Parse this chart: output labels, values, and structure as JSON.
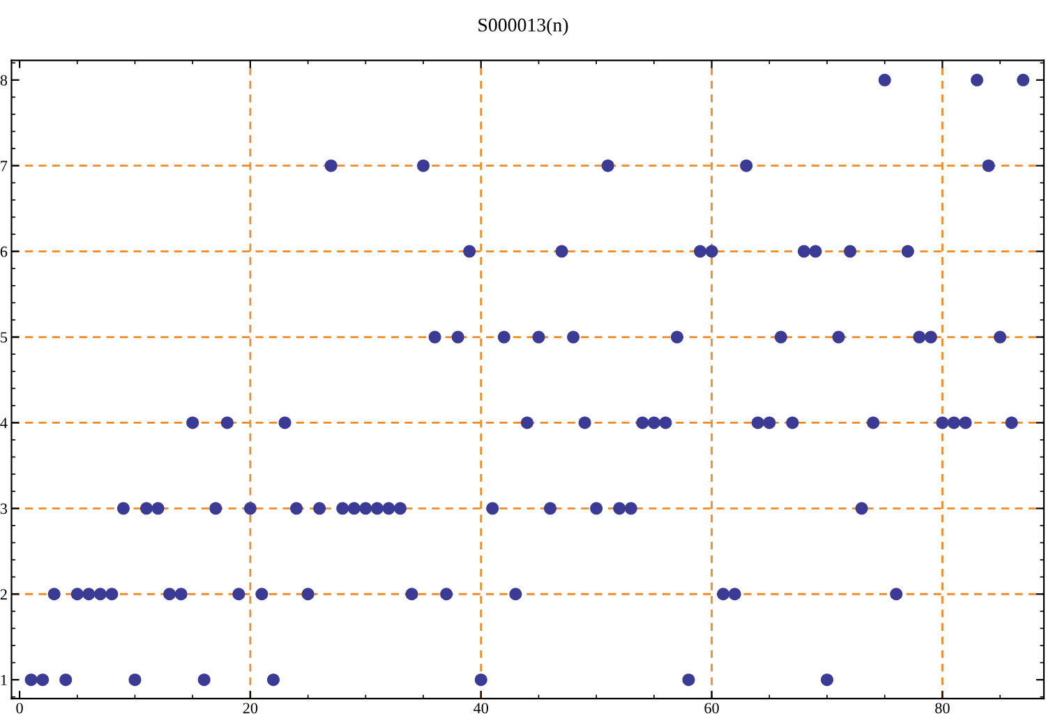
{
  "chart_data": {
    "type": "scatter",
    "title": "S000013(n)",
    "x": [
      1,
      2,
      3,
      4,
      5,
      6,
      7,
      8,
      9,
      10,
      11,
      12,
      13,
      14,
      15,
      16,
      17,
      18,
      19,
      20,
      21,
      22,
      23,
      24,
      25,
      26,
      27,
      28,
      29,
      30,
      31,
      32,
      33,
      34,
      35,
      36,
      37,
      38,
      39,
      40,
      41,
      42,
      43,
      44,
      45,
      46,
      47,
      48,
      49,
      50,
      51,
      52,
      53,
      54,
      55,
      56,
      57,
      58,
      59,
      60,
      61,
      62,
      63,
      64,
      65,
      66,
      67,
      68,
      69,
      70,
      71,
      72,
      73,
      74,
      75,
      76,
      77,
      78,
      79,
      80,
      81,
      82,
      83,
      84,
      85,
      86,
      87
    ],
    "series": [
      {
        "color": "#3b3b96",
        "values": [
          1,
          1,
          2,
          1,
          2,
          2,
          2,
          2,
          3,
          1,
          3,
          3,
          2,
          2,
          4,
          1,
          3,
          4,
          2,
          3,
          2,
          1,
          4,
          3,
          2,
          3,
          7,
          3,
          3,
          3,
          3,
          3,
          3,
          2,
          7,
          5,
          2,
          5,
          6,
          1,
          3,
          5,
          2,
          4,
          5,
          3,
          6,
          5,
          4,
          3,
          7,
          3,
          3,
          4,
          4,
          4,
          5,
          1,
          6,
          6,
          2,
          2,
          7,
          4,
          4,
          5,
          4,
          6,
          6,
          1,
          5,
          6,
          3,
          4,
          8,
          2,
          6,
          5,
          5,
          4,
          4,
          4,
          8,
          7,
          5,
          4,
          8
        ]
      }
    ],
    "marker": "circle",
    "xlim": [
      -0.7,
      88.8
    ],
    "ylim": [
      0.78,
      8.23
    ],
    "xticks": [
      0,
      20,
      40,
      60,
      80
    ],
    "yticks": [
      1,
      2,
      3,
      4,
      5,
      6,
      7,
      8
    ],
    "grid": false,
    "ref_lines": [
      {
        "axis": "x",
        "value": 20,
        "color": "#f08a24",
        "line_style": "dashed"
      },
      {
        "axis": "x",
        "value": 40,
        "color": "#f08a24",
        "line_style": "dashed"
      },
      {
        "axis": "x",
        "value": 60,
        "color": "#f08a24",
        "line_style": "dashed"
      },
      {
        "axis": "x",
        "value": 80,
        "color": "#f08a24",
        "line_style": "dashed"
      },
      {
        "axis": "y",
        "value": 2,
        "color": "#f08a24",
        "line_style": "dashed"
      },
      {
        "axis": "y",
        "value": 3,
        "color": "#f08a24",
        "line_style": "dashed"
      },
      {
        "axis": "y",
        "value": 4,
        "color": "#f08a24",
        "line_style": "dashed"
      },
      {
        "axis": "y",
        "value": 5,
        "color": "#f08a24",
        "line_style": "dashed"
      },
      {
        "axis": "y",
        "value": 6,
        "color": "#f08a24",
        "line_style": "dashed"
      },
      {
        "axis": "y",
        "value": 7,
        "color": "#f08a24",
        "line_style": "dashed"
      }
    ]
  }
}
